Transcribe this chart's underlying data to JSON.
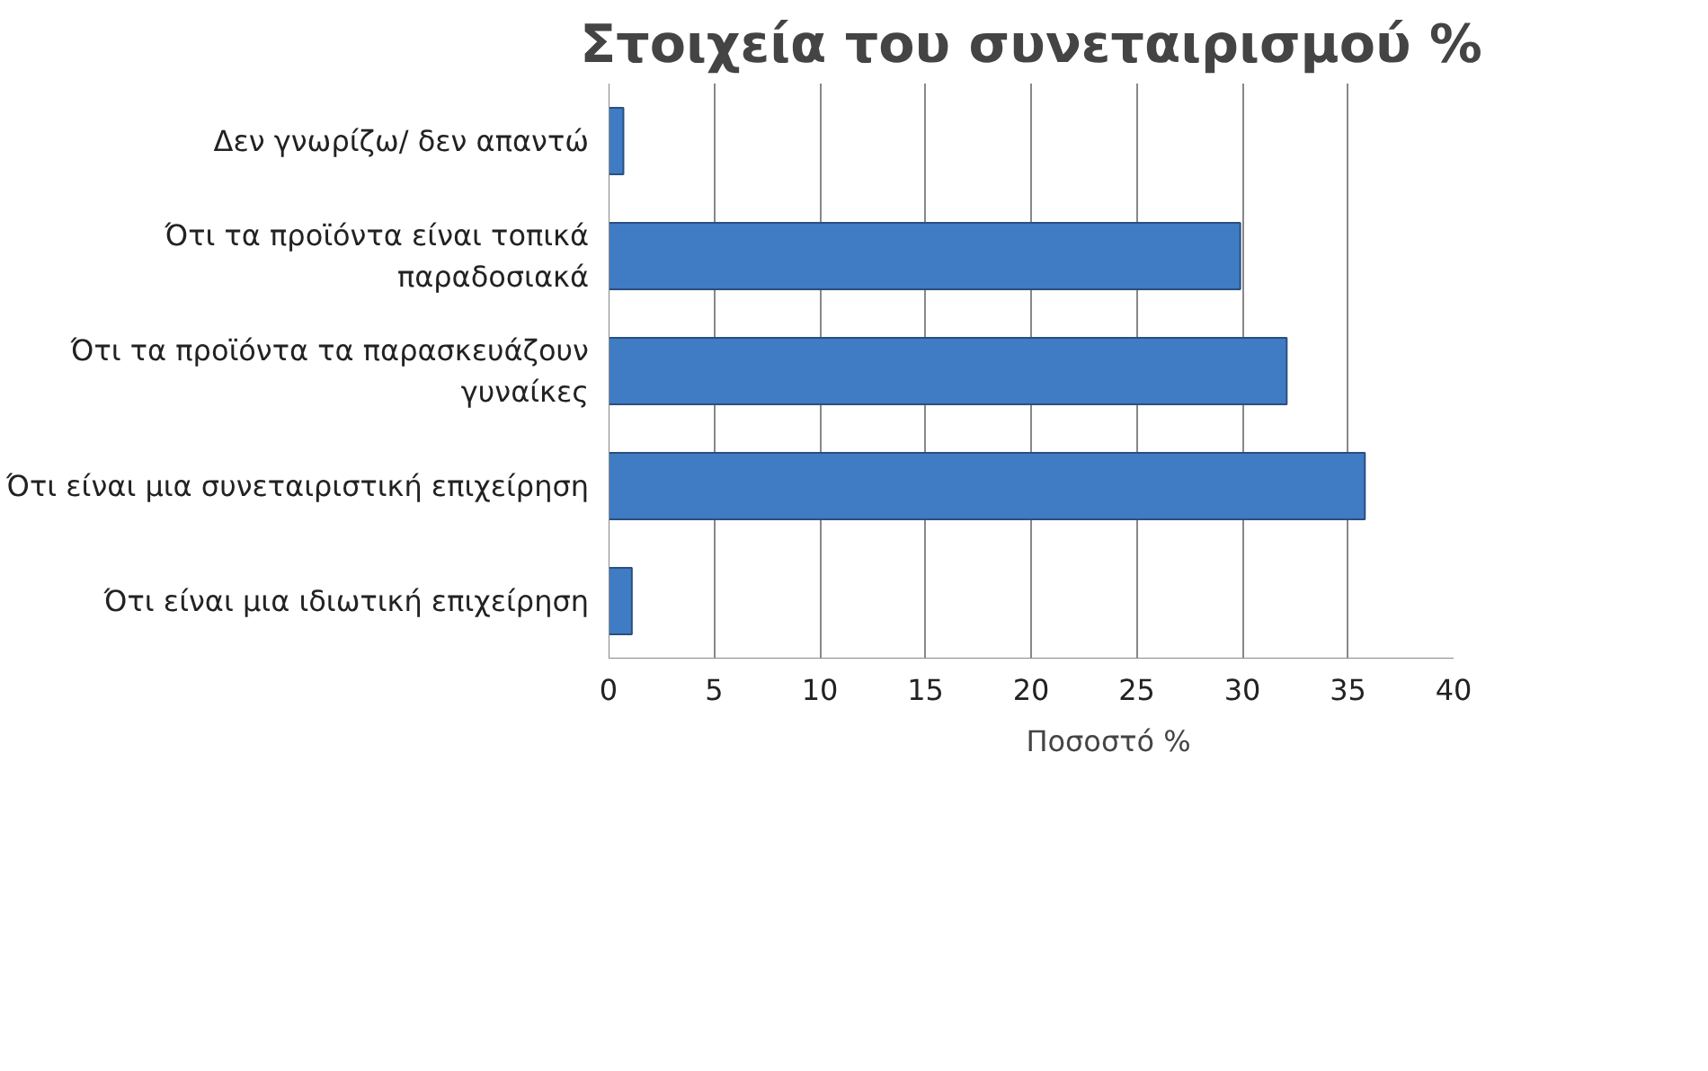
{
  "chart_data": {
    "type": "bar",
    "orientation": "horizontal",
    "title": "Στοιχεία του συνεταιρισμού %",
    "categories": [
      "Δεν γνωρίζω/ δεν απαντώ",
      "Ότι τα προϊόντα είναι τοπικά παραδοσιακά",
      "Ότι τα προϊόντα τα παρασκευάζουν γυναίκες",
      "Ότι είναι μια συνεταιριστική επιχείρηση",
      "Ότι είναι μια ιδιωτική επιχείρηση"
    ],
    "series": [
      {
        "name": "Ποσοστό %",
        "color": "#3f7cc4",
        "values": [
          0.7,
          29.9,
          32.1,
          35.8,
          1.1
        ]
      }
    ],
    "xlim": [
      0,
      40
    ],
    "xticks": [
      0,
      5,
      10,
      15,
      20,
      25,
      30,
      35,
      40
    ],
    "grid": "x",
    "legend": "bottom"
  }
}
